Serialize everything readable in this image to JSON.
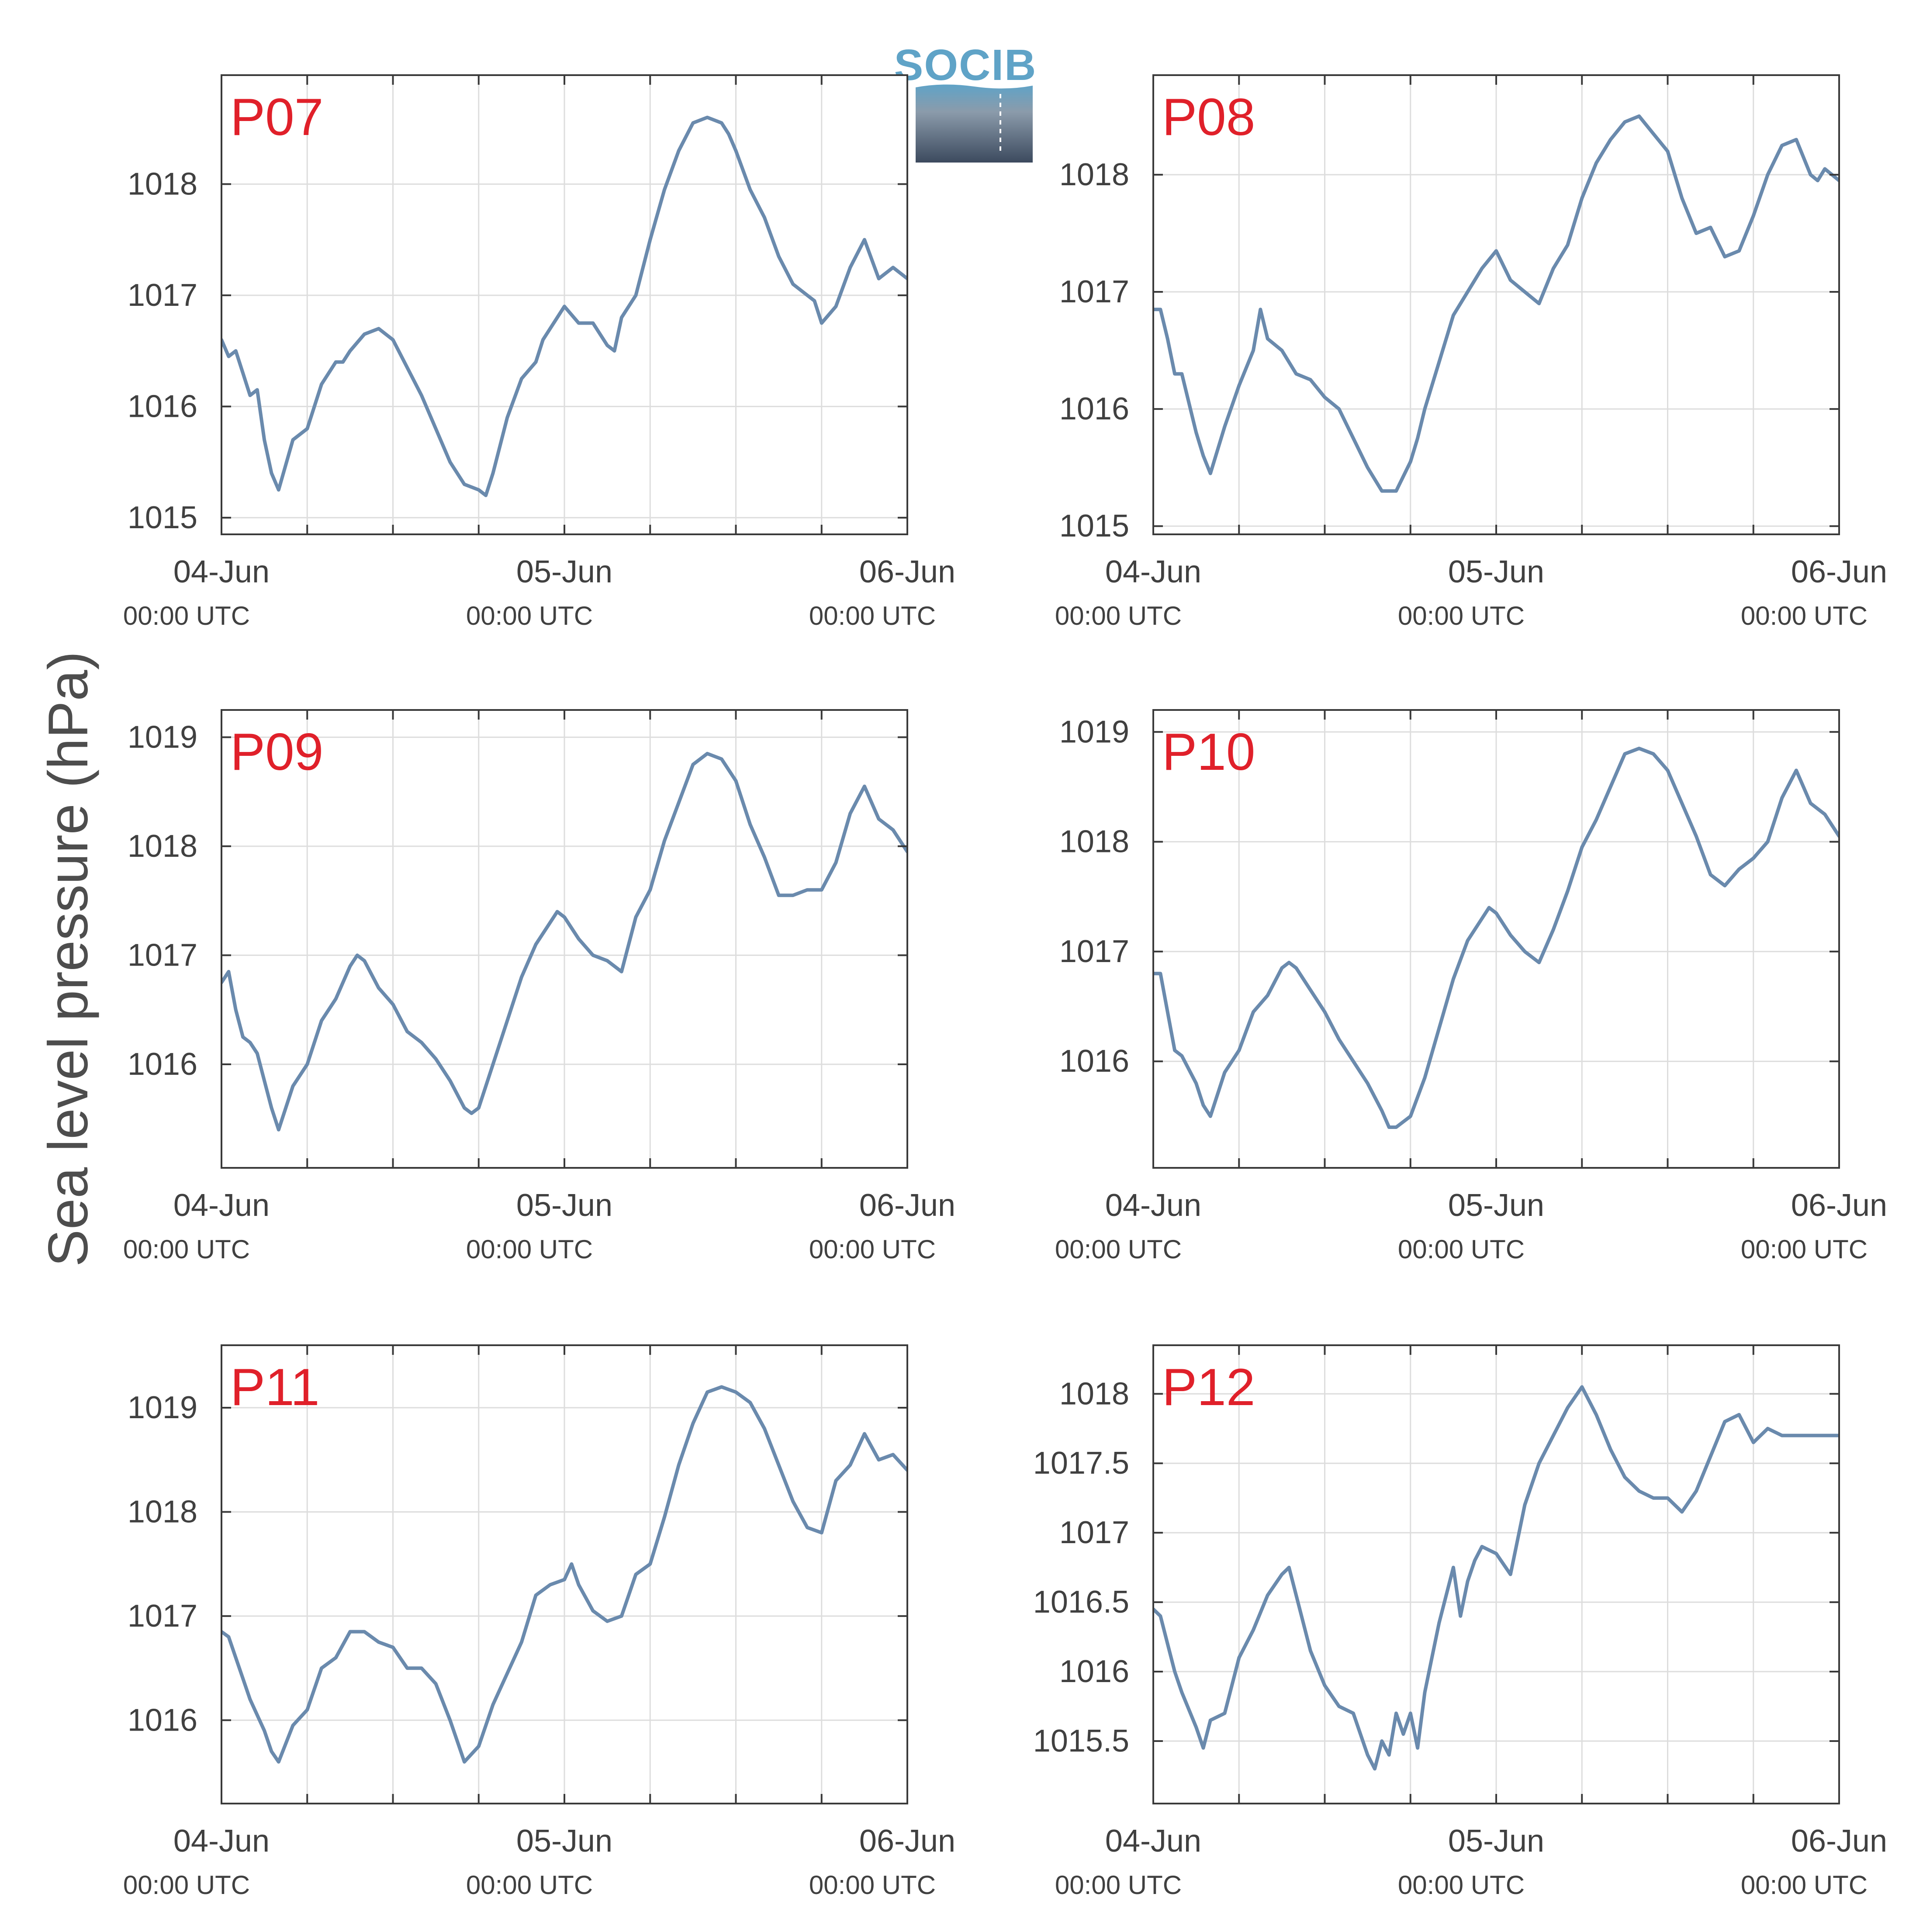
{
  "figure": {
    "ylabel": "Sea level pressure (hPa)",
    "logo_text": "SOCIB"
  },
  "colors": {
    "line": "#6a8aad",
    "panel_label": "#e0202a",
    "axis": "#3a3a3a",
    "grid": "#dddddd",
    "text": "#404040",
    "logo_top": "#5fa3c7",
    "logo_mid": "#8b9bab",
    "logo_bottom": "#3c4a5e"
  },
  "chart_data": [
    {
      "type": "line",
      "title": "P07",
      "x_start": "04-Jun 00:00 UTC",
      "x_end": "06-Jun 00:00 UTC",
      "x_unit": "hours since 04-Jun 00:00 UTC",
      "xlim": [
        0,
        48
      ],
      "xticks": [
        {
          "value": 0,
          "label": "04-Jun",
          "sublabel": "00:00 UTC"
        },
        {
          "value": 24,
          "label": "05-Jun",
          "sublabel": "00:00 UTC"
        },
        {
          "value": 48,
          "label": "06-Jun",
          "sublabel": "00:00 UTC"
        }
      ],
      "xgrid": [
        6,
        12,
        18,
        24,
        30,
        36,
        42
      ],
      "ylim": [
        1014.85,
        1018.98
      ],
      "yticks": [
        1015,
        1016,
        1017,
        1018
      ],
      "ytick_labels": [
        "1015",
        "1016",
        "1017",
        "1018"
      ],
      "grid": true,
      "x": [
        0,
        0.5,
        1,
        1.5,
        2,
        2.5,
        3,
        3.5,
        4,
        5,
        6,
        7,
        8,
        8.5,
        9,
        10,
        11,
        12,
        13,
        14,
        15,
        16,
        17,
        18,
        18.5,
        19,
        20,
        21,
        22,
        22.5,
        23,
        24,
        25,
        26,
        27,
        27.5,
        28,
        29,
        30,
        31,
        32,
        33,
        34,
        35,
        35.5,
        36,
        37,
        38,
        39,
        40,
        41,
        41.5,
        42,
        43,
        44,
        45,
        46,
        47,
        48
      ],
      "y": [
        1016.6,
        1016.45,
        1016.5,
        1016.3,
        1016.1,
        1016.15,
        1015.7,
        1015.4,
        1015.25,
        1015.7,
        1015.8,
        1016.2,
        1016.4,
        1016.4,
        1016.5,
        1016.65,
        1016.7,
        1016.6,
        1016.35,
        1016.1,
        1015.8,
        1015.5,
        1015.3,
        1015.25,
        1015.2,
        1015.4,
        1015.9,
        1016.25,
        1016.4,
        1016.6,
        1016.7,
        1016.9,
        1016.75,
        1016.75,
        1016.55,
        1016.5,
        1016.8,
        1017.0,
        1017.5,
        1017.95,
        1018.3,
        1018.55,
        1018.6,
        1018.55,
        1018.45,
        1018.3,
        1017.95,
        1017.7,
        1017.35,
        1017.1,
        1017.0,
        1016.95,
        1016.75,
        1016.9,
        1017.25,
        1017.5,
        1017.15,
        1017.25,
        1017.15
      ]
    },
    {
      "type": "line",
      "title": "P08",
      "x_start": "04-Jun 00:00 UTC",
      "x_end": "06-Jun 00:00 UTC",
      "x_unit": "hours since 04-Jun 00:00 UTC",
      "xlim": [
        0,
        48
      ],
      "xticks": [
        {
          "value": 0,
          "label": "04-Jun",
          "sublabel": "00:00 UTC"
        },
        {
          "value": 24,
          "label": "05-Jun",
          "sublabel": "00:00 UTC"
        },
        {
          "value": 48,
          "label": "06-Jun",
          "sublabel": "00:00 UTC"
        }
      ],
      "xgrid": [
        6,
        12,
        18,
        24,
        30,
        36,
        42
      ],
      "ylim": [
        1014.93,
        1018.85
      ],
      "yticks": [
        1015,
        1016,
        1017,
        1018
      ],
      "ytick_labels": [
        "1015",
        "1016",
        "1017",
        "1018"
      ],
      "grid": true,
      "x": [
        0,
        0.5,
        1,
        1.5,
        2,
        3,
        3.5,
        4,
        5,
        6,
        7,
        7.5,
        8,
        9,
        10,
        11,
        12,
        13,
        14,
        15,
        16,
        17,
        18,
        18.5,
        19,
        20,
        21,
        22,
        23,
        24,
        25,
        26,
        27,
        28,
        29,
        30,
        31,
        32,
        33,
        34,
        35,
        36,
        37,
        38,
        39,
        40,
        41,
        42,
        43,
        44,
        45,
        46,
        46.5,
        47,
        48
      ],
      "y": [
        1016.85,
        1016.85,
        1016.6,
        1016.3,
        1016.3,
        1015.8,
        1015.6,
        1015.45,
        1015.85,
        1016.2,
        1016.5,
        1016.85,
        1016.6,
        1016.5,
        1016.3,
        1016.25,
        1016.1,
        1016.0,
        1015.75,
        1015.5,
        1015.3,
        1015.3,
        1015.55,
        1015.75,
        1016.0,
        1016.4,
        1016.8,
        1017.0,
        1017.2,
        1017.35,
        1017.1,
        1017.0,
        1016.9,
        1017.2,
        1017.4,
        1017.8,
        1018.1,
        1018.3,
        1018.45,
        1018.5,
        1018.35,
        1018.2,
        1017.8,
        1017.5,
        1017.55,
        1017.3,
        1017.35,
        1017.65,
        1018.0,
        1018.25,
        1018.3,
        1018.0,
        1017.95,
        1018.05,
        1017.95
      ]
    },
    {
      "type": "line",
      "title": "P09",
      "x_start": "04-Jun 00:00 UTC",
      "x_end": "06-Jun 00:00 UTC",
      "x_unit": "hours since 04-Jun 00:00 UTC",
      "xlim": [
        0,
        48
      ],
      "xticks": [
        {
          "value": 0,
          "label": "04-Jun",
          "sublabel": "00:00 UTC"
        },
        {
          "value": 24,
          "label": "05-Jun",
          "sublabel": "00:00 UTC"
        },
        {
          "value": 48,
          "label": "06-Jun",
          "sublabel": "00:00 UTC"
        }
      ],
      "xgrid": [
        6,
        12,
        18,
        24,
        30,
        36,
        42
      ],
      "ylim": [
        1015.05,
        1019.25
      ],
      "yticks": [
        1016,
        1017,
        1018,
        1019
      ],
      "ytick_labels": [
        "1016",
        "1017",
        "1018",
        "1019"
      ],
      "grid": true,
      "x": [
        0,
        0.5,
        1,
        1.5,
        2,
        2.5,
        3,
        3.5,
        4,
        5,
        6,
        7,
        8,
        9,
        9.5,
        10,
        11,
        12,
        13,
        14,
        15,
        16,
        17,
        17.5,
        18,
        19,
        20,
        21,
        22,
        23,
        23.5,
        24,
        25,
        26,
        27,
        28,
        29,
        30,
        31,
        32,
        33,
        34,
        35,
        36,
        37,
        38,
        39,
        40,
        41,
        42,
        43,
        44,
        45,
        46,
        47,
        48
      ],
      "y": [
        1016.75,
        1016.85,
        1016.5,
        1016.25,
        1016.2,
        1016.1,
        1015.85,
        1015.6,
        1015.4,
        1015.8,
        1016.0,
        1016.4,
        1016.6,
        1016.9,
        1017.0,
        1016.95,
        1016.7,
        1016.55,
        1016.3,
        1016.2,
        1016.05,
        1015.85,
        1015.6,
        1015.55,
        1015.6,
        1016.0,
        1016.4,
        1016.8,
        1017.1,
        1017.3,
        1017.4,
        1017.35,
        1017.15,
        1017.0,
        1016.95,
        1016.85,
        1017.35,
        1017.6,
        1018.05,
        1018.4,
        1018.75,
        1018.85,
        1018.8,
        1018.6,
        1018.2,
        1017.9,
        1017.55,
        1017.55,
        1017.6,
        1017.6,
        1017.85,
        1018.3,
        1018.55,
        1018.25,
        1018.15,
        1017.95
      ]
    },
    {
      "type": "line",
      "title": "P10",
      "x_start": "04-Jun 00:00 UTC",
      "x_end": "06-Jun 00:00 UTC",
      "x_unit": "hours since 04-Jun 00:00 UTC",
      "xlim": [
        0,
        48
      ],
      "xticks": [
        {
          "value": 0,
          "label": "04-Jun",
          "sublabel": "00:00 UTC"
        },
        {
          "value": 24,
          "label": "05-Jun",
          "sublabel": "00:00 UTC"
        },
        {
          "value": 48,
          "label": "06-Jun",
          "sublabel": "00:00 UTC"
        }
      ],
      "xgrid": [
        6,
        12,
        18,
        24,
        30,
        36,
        42
      ],
      "ylim": [
        1015.03,
        1019.2
      ],
      "yticks": [
        1016,
        1017,
        1018,
        1019
      ],
      "ytick_labels": [
        "1016",
        "1017",
        "1018",
        "1019"
      ],
      "grid": true,
      "x": [
        0,
        0.5,
        1,
        1.5,
        2,
        3,
        3.5,
        4,
        5,
        6,
        7,
        8,
        9,
        9.5,
        10,
        11,
        12,
        13,
        14,
        15,
        16,
        16.5,
        17,
        18,
        19,
        20,
        21,
        22,
        23,
        23.5,
        24,
        25,
        26,
        27,
        28,
        29,
        30,
        31,
        32,
        33,
        34,
        35,
        36,
        37,
        38,
        39,
        40,
        41,
        42,
        43,
        44,
        45,
        46,
        47,
        48
      ],
      "y": [
        1016.8,
        1016.8,
        1016.45,
        1016.1,
        1016.05,
        1015.8,
        1015.6,
        1015.5,
        1015.9,
        1016.1,
        1016.45,
        1016.6,
        1016.85,
        1016.9,
        1016.85,
        1016.65,
        1016.45,
        1016.2,
        1016.0,
        1015.8,
        1015.55,
        1015.4,
        1015.4,
        1015.5,
        1015.85,
        1016.3,
        1016.75,
        1017.1,
        1017.3,
        1017.4,
        1017.35,
        1017.15,
        1017.0,
        1016.9,
        1017.2,
        1017.55,
        1017.95,
        1018.2,
        1018.5,
        1018.8,
        1018.85,
        1018.8,
        1018.65,
        1018.35,
        1018.05,
        1017.7,
        1017.6,
        1017.75,
        1017.85,
        1018.0,
        1018.4,
        1018.65,
        1018.35,
        1018.25,
        1018.05
      ]
    },
    {
      "type": "line",
      "title": "P11",
      "x_start": "04-Jun 00:00 UTC",
      "x_end": "06-Jun 00:00 UTC",
      "x_unit": "hours since 04-Jun 00:00 UTC",
      "xlim": [
        0,
        48
      ],
      "xticks": [
        {
          "value": 0,
          "label": "04-Jun",
          "sublabel": "00:00 UTC"
        },
        {
          "value": 24,
          "label": "05-Jun",
          "sublabel": "00:00 UTC"
        },
        {
          "value": 48,
          "label": "06-Jun",
          "sublabel": "00:00 UTC"
        }
      ],
      "xgrid": [
        6,
        12,
        18,
        24,
        30,
        36,
        42
      ],
      "ylim": [
        1015.2,
        1019.6
      ],
      "yticks": [
        1016,
        1017,
        1018,
        1019
      ],
      "ytick_labels": [
        "1016",
        "1017",
        "1018",
        "1019"
      ],
      "grid": true,
      "x": [
        0,
        0.5,
        1,
        1.5,
        2,
        3,
        3.5,
        4,
        5,
        6,
        7,
        8,
        9,
        10,
        11,
        12,
        13,
        14,
        15,
        16,
        16.5,
        17,
        18,
        19,
        20,
        21,
        22,
        23,
        24,
        24.5,
        25,
        26,
        27,
        28,
        29,
        30,
        31,
        32,
        33,
        34,
        35,
        36,
        37,
        38,
        39,
        40,
        41,
        42,
        43,
        44,
        45,
        46,
        47,
        48
      ],
      "y": [
        1016.85,
        1016.8,
        1016.6,
        1016.4,
        1016.2,
        1015.9,
        1015.7,
        1015.6,
        1015.95,
        1016.1,
        1016.5,
        1016.6,
        1016.85,
        1016.85,
        1016.75,
        1016.7,
        1016.5,
        1016.5,
        1016.35,
        1016.0,
        1015.8,
        1015.6,
        1015.75,
        1016.15,
        1016.45,
        1016.75,
        1017.2,
        1017.3,
        1017.35,
        1017.5,
        1017.3,
        1017.05,
        1016.95,
        1017.0,
        1017.4,
        1017.5,
        1017.95,
        1018.45,
        1018.85,
        1019.15,
        1019.2,
        1019.15,
        1019.05,
        1018.8,
        1018.45,
        1018.1,
        1017.85,
        1017.8,
        1018.3,
        1018.45,
        1018.75,
        1018.5,
        1018.55,
        1018.4
      ]
    },
    {
      "type": "line",
      "title": "P12",
      "x_start": "04-Jun 00:00 UTC",
      "x_end": "06-Jun 00:00 UTC",
      "x_unit": "hours since 04-Jun 00:00 UTC",
      "xlim": [
        0,
        48
      ],
      "xticks": [
        {
          "value": 0,
          "label": "04-Jun",
          "sublabel": "00:00 UTC"
        },
        {
          "value": 24,
          "label": "05-Jun",
          "sublabel": "00:00 UTC"
        },
        {
          "value": 48,
          "label": "06-Jun",
          "sublabel": "00:00 UTC"
        }
      ],
      "xgrid": [
        6,
        12,
        18,
        24,
        30,
        36,
        42
      ],
      "ylim": [
        1015.05,
        1018.35
      ],
      "yticks": [
        1015.5,
        1016,
        1016.5,
        1017,
        1017.5,
        1018
      ],
      "ytick_labels": [
        "1015.5",
        "1016",
        "1016.5",
        "1017",
        "1017.5",
        "1018"
      ],
      "grid": true,
      "x": [
        0,
        0.5,
        1,
        1.5,
        2,
        3,
        3.5,
        4,
        5,
        6,
        7,
        8,
        9,
        9.5,
        10,
        11,
        12,
        13,
        14,
        15,
        15.5,
        16,
        16.5,
        17,
        17.5,
        18,
        18.5,
        19,
        19.5,
        20,
        21,
        21.5,
        22,
        22.5,
        23,
        24,
        25,
        26,
        27,
        28,
        29,
        30,
        31,
        32,
        33,
        34,
        35,
        36,
        37,
        38,
        39,
        40,
        41,
        42,
        43,
        44,
        45,
        46,
        47,
        48
      ],
      "y": [
        1016.45,
        1016.4,
        1016.2,
        1016.0,
        1015.85,
        1015.6,
        1015.45,
        1015.65,
        1015.7,
        1016.1,
        1016.3,
        1016.55,
        1016.7,
        1016.75,
        1016.55,
        1016.15,
        1015.9,
        1015.75,
        1015.7,
        1015.4,
        1015.3,
        1015.5,
        1015.4,
        1015.7,
        1015.55,
        1015.7,
        1015.45,
        1015.85,
        1016.1,
        1016.35,
        1016.75,
        1016.4,
        1016.65,
        1016.8,
        1016.9,
        1016.85,
        1016.7,
        1017.2,
        1017.5,
        1017.7,
        1017.9,
        1018.05,
        1017.85,
        1017.6,
        1017.4,
        1017.3,
        1017.25,
        1017.25,
        1017.15,
        1017.3,
        1017.55,
        1017.8,
        1017.85,
        1017.65,
        1017.75,
        1017.7,
        1017.7,
        1017.7,
        1017.7,
        1017.7
      ]
    }
  ]
}
